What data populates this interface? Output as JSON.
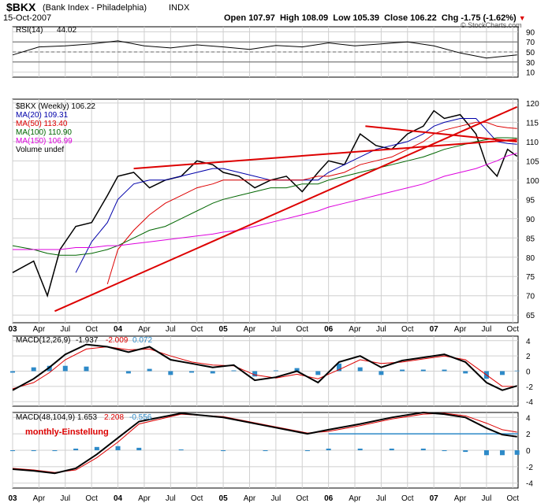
{
  "header": {
    "symbol": "$BKX",
    "name": "(Bank Index - Philadelphia)",
    "exchange": "INDX",
    "date": "15-Oct-2007",
    "quote": [
      {
        "label": "Open",
        "value": "107.97"
      },
      {
        "label": "High",
        "value": "108.09"
      },
      {
        "label": "Low",
        "value": "105.39"
      },
      {
        "label": "Close",
        "value": "106.22"
      },
      {
        "label": "Chg",
        "value": "-1.75 (-1.62%)"
      }
    ],
    "watermark": "© StockCharts.com"
  },
  "colors": {
    "grid": "#cfcfcf",
    "price": "#000000",
    "ma20": "#0000aa",
    "ma50": "#dd0000",
    "ma100": "#006600",
    "ma150": "#dd00dd",
    "trendline": "#dd0000",
    "histogram": "#2e8ac8",
    "macd_line": "#000000",
    "signal_line": "#dd0000",
    "hline": "#2e8ac8"
  },
  "panels": {
    "rsi": {
      "label": "RSI(14)",
      "value": "44.02"
    },
    "price": {
      "legend": [
        {
          "text": "$BKX (Weekly) 106.22",
          "color": "#000000"
        },
        {
          "text": "MA(20) 109.31",
          "color": "#0000aa"
        },
        {
          "text": "MA(50) 113.40",
          "color": "#dd0000"
        },
        {
          "text": "MA(100) 110.90",
          "color": "#006600"
        },
        {
          "text": "MA(150) 106.99",
          "color": "#dd00dd"
        },
        {
          "text": "Volume undef",
          "color": "#000000"
        }
      ]
    },
    "macd1": {
      "label": "MACD(12,26,9)",
      "v1": "-1.937",
      "v2": "-2.009",
      "v3": "0.072"
    },
    "macd2": {
      "label": "MACD(48,104,9)",
      "v1": "1.653",
      "v2": "2.208",
      "v3": "-0.556",
      "annotation": "monthly-Einstellung"
    }
  },
  "chart_data": [
    {
      "type": "line",
      "title": "RSI(14) 44.02",
      "ylim": [
        0,
        100
      ],
      "y_ticks": [
        10,
        30,
        50,
        70,
        90
      ],
      "reference_lines": [
        30,
        50,
        70
      ],
      "x": [
        0,
        0.25,
        0.5,
        0.75,
        1.0,
        1.25,
        1.5,
        1.75,
        2.0,
        2.25,
        2.5,
        2.75,
        3.0,
        3.25,
        3.5,
        3.75,
        4.0,
        4.25,
        4.5,
        4.79
      ],
      "series": [
        {
          "name": "RSI(14)",
          "values": [
            44,
            60,
            62,
            66,
            72,
            62,
            58,
            64,
            60,
            55,
            63,
            60,
            68,
            62,
            66,
            70,
            62,
            48,
            38,
            44
          ]
        }
      ]
    },
    {
      "type": "line",
      "title": "$BKX (Weekly) 106.22",
      "ylim": [
        65,
        120
      ],
      "y_ticks": [
        65,
        70,
        75,
        80,
        85,
        90,
        95,
        100,
        105,
        110,
        115,
        120
      ],
      "x_ticks": [
        0,
        0.25,
        0.5,
        0.75,
        1,
        1.25,
        1.5,
        1.75,
        2,
        2.25,
        2.5,
        2.75,
        3,
        3.25,
        3.5,
        3.75,
        4,
        4.25,
        4.5,
        4.75
      ],
      "x_labels": [
        "03",
        "Apr",
        "Jul",
        "Oct",
        "04",
        "Apr",
        "Jul",
        "Oct",
        "05",
        "Apr",
        "Jul",
        "Oct",
        "06",
        "Apr",
        "Jul",
        "Oct",
        "07",
        "Apr",
        "Jul",
        "Oct"
      ],
      "x": [
        0,
        0.2,
        0.33,
        0.45,
        0.6,
        0.75,
        0.9,
        1.0,
        1.15,
        1.3,
        1.45,
        1.6,
        1.75,
        1.9,
        2.0,
        2.15,
        2.3,
        2.45,
        2.6,
        2.75,
        2.9,
        3.0,
        3.15,
        3.3,
        3.45,
        3.6,
        3.75,
        3.9,
        4.0,
        4.1,
        4.25,
        4.4,
        4.5,
        4.6,
        4.7,
        4.79
      ],
      "series": [
        {
          "name": "$BKX",
          "values": [
            76,
            79,
            70,
            82,
            88,
            89,
            96,
            101,
            102,
            98,
            100,
            101,
            105,
            104,
            102,
            101,
            98,
            100,
            101,
            97,
            102,
            105,
            104,
            112,
            109,
            108,
            112,
            114,
            118,
            116,
            117,
            112,
            104,
            101,
            108,
            106.2
          ]
        },
        {
          "name": "MA(20)",
          "values": [
            null,
            null,
            null,
            null,
            76,
            84,
            89,
            95,
            99,
            100,
            100,
            101,
            102,
            103,
            103,
            102,
            101,
            100,
            100,
            100,
            100,
            102,
            104,
            106,
            108,
            109,
            110,
            112,
            114,
            115,
            116,
            116,
            113,
            110,
            109.5,
            109.31
          ]
        },
        {
          "name": "MA(50)",
          "values": [
            null,
            null,
            null,
            null,
            null,
            null,
            73,
            82,
            87,
            91,
            94,
            96,
            98,
            99,
            100,
            100,
            100,
            100,
            100,
            100,
            101,
            101,
            102,
            104,
            105,
            106,
            108,
            110,
            112,
            113,
            114,
            115,
            115,
            114,
            113.6,
            113.4
          ]
        },
        {
          "name": "MA(100)",
          "values": [
            83,
            82,
            81,
            80.5,
            80.5,
            81,
            82,
            83,
            85,
            87,
            88,
            90,
            92,
            94,
            95,
            96,
            97,
            98,
            98,
            99,
            99,
            100,
            101,
            102,
            103,
            104,
            105,
            106,
            107,
            108,
            109,
            110,
            110.5,
            111,
            111,
            110.9
          ]
        },
        {
          "name": "MA(150)",
          "values": [
            82,
            82,
            82,
            82,
            82.5,
            82.5,
            83,
            83,
            83.5,
            84,
            84.5,
            85,
            85.5,
            86,
            86.5,
            87,
            88,
            89,
            90,
            91,
            92,
            93,
            94,
            95,
            96,
            97,
            98,
            99,
            100,
            101,
            102,
            103,
            104,
            105,
            106.3,
            106.99
          ]
        }
      ],
      "trendlines": [
        {
          "x1": 0.4,
          "y1": 66,
          "x2": 4.79,
          "y2": 119
        },
        {
          "x1": 1.15,
          "y1": 103,
          "x2": 4.79,
          "y2": 110.5
        },
        {
          "x1": 3.35,
          "y1": 114,
          "x2": 4.79,
          "y2": 110
        }
      ]
    },
    {
      "type": "line",
      "title": "MACD(12,26,9)",
      "ylim": [
        -4,
        4
      ],
      "y_ticks": [
        -4,
        -2,
        0,
        2,
        4
      ],
      "x": [
        0,
        0.2,
        0.35,
        0.5,
        0.7,
        0.9,
        1.1,
        1.3,
        1.5,
        1.7,
        1.9,
        2.1,
        2.3,
        2.5,
        2.7,
        2.9,
        3.1,
        3.3,
        3.5,
        3.7,
        3.9,
        4.1,
        4.3,
        4.5,
        4.65,
        4.79
      ],
      "series": [
        {
          "name": "MACD",
          "values": [
            -2.5,
            -1,
            0.5,
            2.2,
            3.5,
            3.2,
            2.5,
            3.2,
            1.5,
            1,
            0.5,
            0.8,
            -1.2,
            -0.8,
            0,
            -1.5,
            1.2,
            2,
            0.5,
            1.4,
            1.8,
            2.2,
            1.2,
            -1.5,
            -2.5,
            -1.937
          ]
        },
        {
          "name": "Signal",
          "values": [
            -2.3,
            -1.5,
            -0.2,
            1.5,
            2.9,
            3.2,
            2.8,
            2.9,
            2,
            1.2,
            0.8,
            0.7,
            -0.5,
            -0.9,
            -0.4,
            -1,
            0.2,
            1.5,
            1,
            1.2,
            1.6,
            2,
            1.5,
            -0.5,
            -2,
            -2.009
          ]
        },
        {
          "name": "Histogram",
          "values": [
            -0.2,
            0.5,
            0.7,
            0.7,
            0.6,
            0,
            -0.3,
            0.3,
            -0.5,
            -0.2,
            -0.3,
            0.1,
            -0.7,
            0.1,
            0.4,
            -0.5,
            1,
            0.5,
            -0.5,
            0.2,
            0.2,
            0.2,
            -0.3,
            -1,
            -0.5,
            0.072
          ]
        }
      ]
    },
    {
      "type": "line",
      "title": "MACD(48,104,9)",
      "ylim": [
        -4,
        4
      ],
      "y_ticks": [
        -4,
        -2,
        0,
        2,
        4
      ],
      "x": [
        0,
        0.2,
        0.4,
        0.6,
        0.8,
        1.0,
        1.2,
        1.6,
        2.0,
        2.4,
        2.8,
        3.0,
        3.3,
        3.6,
        3.9,
        4.1,
        4.3,
        4.5,
        4.65,
        4.79
      ],
      "series": [
        {
          "name": "MACD",
          "values": [
            -2.3,
            -2.5,
            -2.8,
            -2.2,
            -0.5,
            1.5,
            3.5,
            4.5,
            4.0,
            3.0,
            2.0,
            2.5,
            3.2,
            4.0,
            4.6,
            4.4,
            4.0,
            2.7,
            1.9,
            1.653
          ]
        },
        {
          "name": "Signal",
          "values": [
            -2.2,
            -2.4,
            -2.7,
            -2.4,
            -0.9,
            1.0,
            3.2,
            4.4,
            4.1,
            3.1,
            2.1,
            2.3,
            3.0,
            3.8,
            4.4,
            4.5,
            4.2,
            3.3,
            2.5,
            2.208
          ]
        },
        {
          "name": "Histogram",
          "values": [
            -0.1,
            -0.1,
            -0.1,
            0.2,
            0.4,
            0.5,
            0.3,
            0.1,
            -0.1,
            -0.1,
            -0.1,
            0.2,
            0.2,
            0.2,
            0.2,
            -0.1,
            -0.2,
            -0.6,
            -0.6,
            -0.556
          ]
        }
      ],
      "reference_lines": [
        2
      ]
    }
  ]
}
